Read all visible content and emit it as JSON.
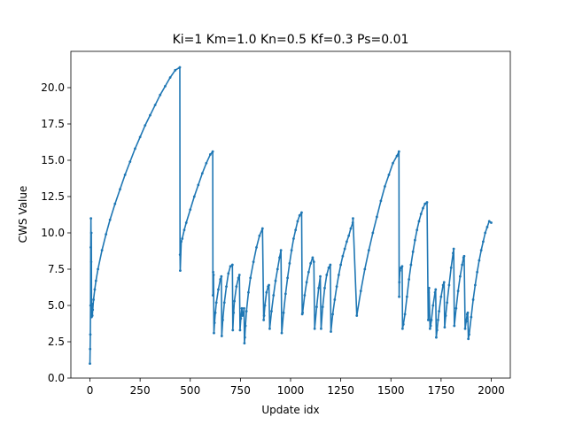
{
  "chart_data": {
    "type": "line",
    "title": "Ki=1 Km=1.0 Kn=0.5 Kf=0.3 Ps=0.01",
    "xlabel": "Update idx",
    "ylabel": "CWS Value",
    "xlim": [
      -95,
      2095
    ],
    "ylim": [
      0,
      22.5
    ],
    "grid": false,
    "color": "#1f77b4",
    "xticks": [
      0,
      250,
      500,
      750,
      1000,
      1250,
      1500,
      1750,
      2000
    ],
    "xtick_labels": [
      "0",
      "250",
      "500",
      "750",
      "1000",
      "1250",
      "1500",
      "1750",
      "2000"
    ],
    "yticks": [
      0,
      2.5,
      5,
      7.5,
      10,
      12.5,
      15,
      17.5,
      20
    ],
    "ytick_labels": [
      "0.0",
      "2.5",
      "5.0",
      "7.5",
      "10.0",
      "12.5",
      "15.0",
      "17.5",
      "20.0"
    ],
    "series": [
      {
        "name": "",
        "x": [
          0,
          1,
          2,
          3,
          4,
          5,
          6,
          7,
          8,
          9,
          10,
          11,
          12,
          14,
          18,
          24,
          30,
          40,
          60,
          80,
          100,
          125,
          150,
          175,
          200,
          225,
          250,
          275,
          300,
          325,
          350,
          375,
          400,
          425,
          448,
          449,
          450,
          455,
          460,
          470,
          480,
          500,
          520,
          540,
          560,
          580,
          600,
          612,
          613,
          614,
          616,
          618,
          621,
          625,
          630,
          640,
          650,
          655,
          657,
          662,
          670,
          680,
          690,
          700,
          710,
          712,
          716,
          720,
          730,
          740,
          745,
          748,
          752,
          757,
          760,
          765,
          768,
          770,
          772,
          775,
          780,
          790,
          800,
          815,
          830,
          845,
          860,
          866,
          868,
          872,
          880,
          888,
          892,
          896,
          905,
          915,
          925,
          935,
          945,
          952,
          956,
          965,
          975,
          985,
          995,
          1005,
          1015,
          1025,
          1035,
          1045,
          1055,
          1058,
          1060,
          1070,
          1080,
          1090,
          1100,
          1110,
          1116,
          1120,
          1130,
          1140,
          1148,
          1152,
          1160,
          1170,
          1180,
          1190,
          1198,
          1201,
          1210,
          1220,
          1230,
          1240,
          1250,
          1260,
          1270,
          1280,
          1290,
          1300,
          1310,
          1311,
          1330,
          1350,
          1370,
          1390,
          1410,
          1430,
          1450,
          1470,
          1490,
          1510,
          1530,
          1540,
          1541,
          1542,
          1545,
          1550,
          1556,
          1558,
          1562,
          1570,
          1580,
          1590,
          1600,
          1610,
          1620,
          1630,
          1640,
          1650,
          1660,
          1670,
          1680,
          1686,
          1688,
          1690,
          1695,
          1698,
          1702,
          1710,
          1720,
          1723,
          1726,
          1730,
          1735,
          1740,
          1750,
          1760,
          1765,
          1768,
          1773,
          1780,
          1790,
          1800,
          1810,
          1813,
          1816,
          1825,
          1835,
          1845,
          1855,
          1862,
          1865,
          1870,
          1875,
          1880,
          1883,
          1886,
          1890,
          1900,
          1910,
          1920,
          1930,
          1940,
          1950,
          1960,
          1970,
          1980,
          1990,
          2000
        ],
        "y": [
          1.0,
          2.0,
          3.0,
          5.0,
          9.0,
          11.0,
          8.0,
          10.0,
          4.2,
          4.6,
          4.9,
          5.1,
          4.3,
          4.7,
          5.4,
          6.1,
          6.7,
          7.5,
          8.8,
          9.9,
          10.9,
          12.0,
          13.0,
          14.0,
          14.9,
          15.8,
          16.6,
          17.4,
          18.1,
          18.8,
          19.5,
          20.1,
          20.7,
          21.2,
          21.4,
          8.5,
          7.4,
          9.4,
          9.6,
          10.2,
          10.7,
          11.6,
          12.5,
          13.3,
          14.1,
          14.8,
          15.4,
          15.6,
          5.7,
          7.3,
          7.1,
          3.1,
          3.8,
          4.5,
          5.2,
          6.1,
          6.8,
          7.0,
          2.9,
          4.0,
          5.2,
          6.3,
          7.2,
          7.7,
          7.8,
          3.3,
          4.5,
          5.3,
          6.3,
          6.9,
          7.1,
          3.3,
          4.1,
          4.8,
          4.3,
          4.5,
          4.8,
          2.4,
          2.8,
          3.6,
          4.6,
          5.9,
          6.9,
          8.0,
          9.0,
          9.8,
          10.3,
          4.0,
          4.3,
          5.0,
          5.9,
          6.3,
          6.4,
          3.4,
          4.6,
          5.7,
          6.7,
          7.5,
          8.3,
          8.8,
          3.1,
          4.5,
          5.8,
          6.9,
          7.9,
          8.8,
          9.6,
          10.2,
          10.8,
          11.2,
          11.4,
          4.4,
          4.5,
          5.7,
          6.6,
          7.3,
          7.9,
          8.3,
          8.0,
          3.4,
          4.9,
          6.2,
          7.0,
          3.4,
          4.9,
          6.2,
          7.1,
          7.6,
          7.8,
          3.2,
          4.4,
          5.4,
          6.3,
          7.1,
          7.8,
          8.4,
          8.9,
          9.4,
          9.8,
          10.3,
          10.7,
          11.0,
          4.3,
          6.0,
          7.5,
          8.8,
          10.0,
          11.1,
          12.2,
          13.2,
          14.0,
          14.8,
          15.3,
          15.6,
          5.6,
          6.6,
          7.4,
          7.6,
          7.7,
          3.4,
          3.7,
          4.4,
          5.6,
          6.8,
          7.8,
          8.7,
          9.5,
          10.2,
          10.8,
          11.3,
          11.7,
          12.0,
          12.1,
          4.0,
          5.9,
          6.2,
          3.4,
          3.6,
          4.0,
          5.0,
          5.9,
          6.1,
          2.8,
          3.3,
          4.0,
          4.6,
          5.6,
          6.4,
          6.6,
          3.5,
          4.3,
          5.2,
          6.4,
          7.6,
          8.6,
          8.9,
          3.6,
          4.8,
          6.0,
          7.0,
          7.8,
          8.3,
          8.4,
          3.4,
          3.9,
          4.4,
          4.5,
          2.7,
          3.0,
          4.2,
          5.4,
          6.4,
          7.3,
          8.1,
          8.8,
          9.4,
          10.0,
          10.4,
          10.8,
          10.7
        ]
      }
    ]
  }
}
